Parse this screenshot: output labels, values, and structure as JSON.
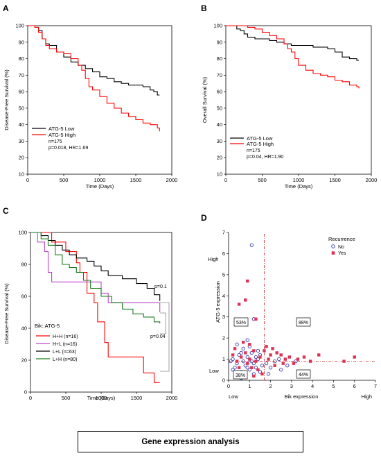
{
  "caption": "Gene expression analysis",
  "chart_data": [
    {
      "panel": "A",
      "type": "line",
      "xlabel": "Time (Days)",
      "ylabel": "Disease-Free Survival (%)",
      "xlim": [
        0,
        2000
      ],
      "ylim": [
        10,
        100
      ],
      "xticks": [
        0,
        500,
        1000,
        1500,
        2000
      ],
      "yticks": [
        10,
        20,
        30,
        40,
        50,
        60,
        70,
        80,
        90,
        100
      ],
      "series": [
        {
          "name": "ATG-5 Low",
          "color": "#000000",
          "x": [
            0,
            100,
            150,
            200,
            250,
            300,
            400,
            500,
            600,
            700,
            800,
            900,
            1000,
            1100,
            1200,
            1300,
            1400,
            1500,
            1600,
            1700,
            1750,
            1800,
            1830
          ],
          "y": [
            100,
            99,
            97,
            92,
            89,
            88,
            84,
            81,
            78,
            76,
            74,
            72,
            69,
            68,
            66,
            65,
            64,
            64,
            63,
            61,
            60,
            58,
            58
          ]
        },
        {
          "name": "ATG-5 High",
          "color": "#ff0000",
          "x": [
            0,
            100,
            150,
            200,
            250,
            300,
            400,
            500,
            600,
            700,
            750,
            800,
            850,
            900,
            1000,
            1100,
            1200,
            1300,
            1400,
            1500,
            1600,
            1700,
            1800,
            1830
          ],
          "y": [
            100,
            99,
            96,
            92,
            88,
            86,
            84,
            83,
            80,
            76,
            73,
            68,
            63,
            61,
            57,
            53,
            50,
            47,
            45,
            43,
            41,
            40,
            38,
            36
          ]
        }
      ],
      "legend": [
        "ATG-5 Low",
        "ATG-5 High"
      ],
      "annotations": [
        "n=175",
        "p=0.018, HR=1.69"
      ]
    },
    {
      "panel": "B",
      "type": "line",
      "xlabel": "Time (Days)",
      "ylabel": "Overall Survival (%)",
      "xlim": [
        0,
        2000
      ],
      "ylim": [
        10,
        100
      ],
      "xticks": [
        0,
        500,
        1000,
        1500,
        2000
      ],
      "yticks": [
        10,
        20,
        30,
        40,
        50,
        60,
        70,
        80,
        90,
        100
      ],
      "series": [
        {
          "name": "ATG-5 Low",
          "color": "#000000",
          "x": [
            0,
            100,
            150,
            200,
            250,
            300,
            400,
            500,
            600,
            700,
            800,
            900,
            1000,
            1100,
            1200,
            1300,
            1400,
            1500,
            1600,
            1700,
            1800,
            1830
          ],
          "y": [
            100,
            100,
            98,
            97,
            95,
            93,
            92,
            92,
            91,
            90,
            89,
            88,
            88,
            88,
            87,
            87,
            86,
            84,
            81,
            80,
            79,
            79
          ]
        },
        {
          "name": "ATG-5 High",
          "color": "#ff0000",
          "x": [
            0,
            100,
            200,
            300,
            400,
            500,
            600,
            700,
            800,
            850,
            900,
            950,
            1000,
            1100,
            1200,
            1300,
            1400,
            1500,
            1600,
            1700,
            1800,
            1830
          ],
          "y": [
            100,
            100,
            100,
            99,
            98,
            96,
            94,
            92,
            89,
            86,
            84,
            80,
            76,
            73,
            71,
            70,
            69,
            67,
            66,
            64,
            63,
            62
          ]
        }
      ],
      "legend": [
        "ATG-5 Low",
        "ATG-5 High"
      ],
      "annotations": [
        "n=175",
        "p=0.04, HR=1.90"
      ]
    },
    {
      "panel": "C",
      "type": "line",
      "xlabel": "Time (Days)",
      "ylabel": "Disease-Free Survival (%)",
      "xlim": [
        0,
        2000
      ],
      "ylim": [
        0,
        100
      ],
      "xticks": [
        0,
        500,
        1000,
        1500,
        2000
      ],
      "yticks": [
        0,
        20,
        40,
        60,
        80,
        100
      ],
      "legend_title": "Bik::ATG-5",
      "series": [
        {
          "name": "H+H (n=16)",
          "color": "#ff0000",
          "x": [
            0,
            200,
            300,
            500,
            650,
            700,
            800,
            900,
            950,
            1050,
            1100,
            1550,
            1600,
            1750,
            1830
          ],
          "y": [
            100,
            100,
            94,
            88,
            81,
            75,
            62,
            56,
            44,
            31,
            22,
            22,
            12,
            6,
            6
          ]
        },
        {
          "name": "H+L (n=16)",
          "color": "#bb44cc",
          "x": [
            0,
            100,
            200,
            250,
            300,
            400,
            900,
            1000,
            1100,
            1700,
            1830
          ],
          "y": [
            100,
            94,
            88,
            75,
            69,
            69,
            69,
            62,
            56,
            56,
            50
          ]
        },
        {
          "name": "L+L (n=63)",
          "color": "#000000",
          "x": [
            0,
            150,
            250,
            350,
            450,
            550,
            650,
            800,
            900,
            1000,
            1100,
            1300,
            1500,
            1650,
            1750,
            1830
          ],
          "y": [
            100,
            98,
            95,
            92,
            89,
            86,
            84,
            82,
            79,
            76,
            73,
            71,
            68,
            65,
            61,
            57
          ]
        },
        {
          "name": "L+H (n=80)",
          "color": "#1a7a1a",
          "x": [
            0,
            150,
            250,
            350,
            450,
            550,
            650,
            750,
            850,
            1000,
            1150,
            1300,
            1450,
            1600,
            1750,
            1830
          ],
          "y": [
            100,
            96,
            92,
            86,
            80,
            78,
            75,
            70,
            65,
            60,
            56,
            52,
            49,
            47,
            44,
            43
          ]
        }
      ],
      "annotations": [
        "p=0.1",
        "p=0.04"
      ]
    },
    {
      "panel": "D",
      "type": "scatter",
      "xlabel": "Bik expression",
      "ylabel": "ATG-5 expression",
      "xlim": [
        0,
        7
      ],
      "ylim": [
        0,
        7
      ],
      "xticks": [
        0,
        1,
        2,
        3,
        4,
        5,
        6,
        7
      ],
      "yticks": [
        0,
        1,
        2,
        3,
        4,
        5,
        6,
        7
      ],
      "legend_title": "Recurrence",
      "x_extremes": [
        "Low",
        "High"
      ],
      "y_extremes": [
        "Low",
        "High"
      ],
      "cutoff_x": 1.7,
      "cutoff_y": 0.9,
      "quadrant_labels": {
        "upper_left": "53%",
        "upper_right": "88%",
        "lower_left": "38%",
        "lower_right": "44%"
      },
      "series": [
        {
          "name": "No",
          "color": "#3a3aa8",
          "marker": "circle",
          "points": [
            [
              1.1,
              6.4
            ],
            [
              0.9,
              1.9
            ],
            [
              1.2,
              2.9
            ],
            [
              0.3,
              0.6
            ],
            [
              0.2,
              1.0
            ],
            [
              0.4,
              0.8
            ],
            [
              0.5,
              1.2
            ],
            [
              0.6,
              0.4
            ],
            [
              0.7,
              0.9
            ],
            [
              0.8,
              0.7
            ],
            [
              0.9,
              1.1
            ],
            [
              1.0,
              0.5
            ],
            [
              1.1,
              1.3
            ],
            [
              1.2,
              0.8
            ],
            [
              1.3,
              0.6
            ],
            [
              1.4,
              1.0
            ],
            [
              1.5,
              0.4
            ],
            [
              1.6,
              0.7
            ],
            [
              0.3,
              0.2
            ],
            [
              0.5,
              0.3
            ],
            [
              0.7,
              1.5
            ],
            [
              0.8,
              0.2
            ],
            [
              1.0,
              1.6
            ],
            [
              1.2,
              0.3
            ],
            [
              1.4,
              1.4
            ],
            [
              0.4,
              1.7
            ],
            [
              0.6,
              1.3
            ],
            [
              0.2,
              0.5
            ],
            [
              0.1,
              0.9
            ],
            [
              1.3,
              1.1
            ],
            [
              1.5,
              1.2
            ],
            [
              1.8,
              0.8
            ],
            [
              2.0,
              0.6
            ],
            [
              2.2,
              0.9
            ],
            [
              2.5,
              0.5
            ],
            [
              2.8,
              0.7
            ],
            [
              3.2,
              0.9
            ],
            [
              1.9,
              0.3
            ],
            [
              2.4,
              1.0
            ],
            [
              0.9,
              0.6
            ],
            [
              1.1,
              0.9
            ],
            [
              0.6,
              0.1
            ]
          ]
        },
        {
          "name": "Yes",
          "color": "#dd3355",
          "marker": "square",
          "points": [
            [
              0.9,
              4.7
            ],
            [
              0.5,
              3.6
            ],
            [
              0.6,
              2.8
            ],
            [
              1.3,
              2.9
            ],
            [
              0.8,
              3.8
            ],
            [
              0.3,
              1.5
            ],
            [
              0.4,
              0.9
            ],
            [
              0.5,
              0.6
            ],
            [
              0.6,
              1.1
            ],
            [
              0.7,
              0.4
            ],
            [
              0.8,
              1.3
            ],
            [
              0.9,
              0.8
            ],
            [
              1.0,
              1.0
            ],
            [
              1.1,
              0.6
            ],
            [
              1.2,
              1.4
            ],
            [
              1.3,
              0.9
            ],
            [
              1.4,
              0.5
            ],
            [
              1.5,
              1.1
            ],
            [
              1.6,
              0.3
            ],
            [
              1.7,
              1.4
            ],
            [
              1.8,
              1.6
            ],
            [
              1.9,
              1.0
            ],
            [
              2.0,
              1.2
            ],
            [
              2.1,
              1.5
            ],
            [
              2.2,
              0.7
            ],
            [
              2.3,
              1.3
            ],
            [
              2.5,
              1.2
            ],
            [
              2.7,
              1.0
            ],
            [
              2.9,
              1.1
            ],
            [
              3.1,
              0.8
            ],
            [
              3.3,
              1.0
            ],
            [
              3.6,
              1.1
            ],
            [
              3.9,
              0.9
            ],
            [
              4.3,
              1.2
            ],
            [
              5.5,
              0.9
            ],
            [
              6.0,
              1.1
            ],
            [
              0.2,
              1.2
            ],
            [
              0.4,
              0.4
            ],
            [
              1.0,
              1.7
            ],
            [
              1.2,
              0.2
            ],
            [
              0.7,
              1.8
            ],
            [
              2.6,
              0.8
            ]
          ]
        }
      ]
    }
  ]
}
